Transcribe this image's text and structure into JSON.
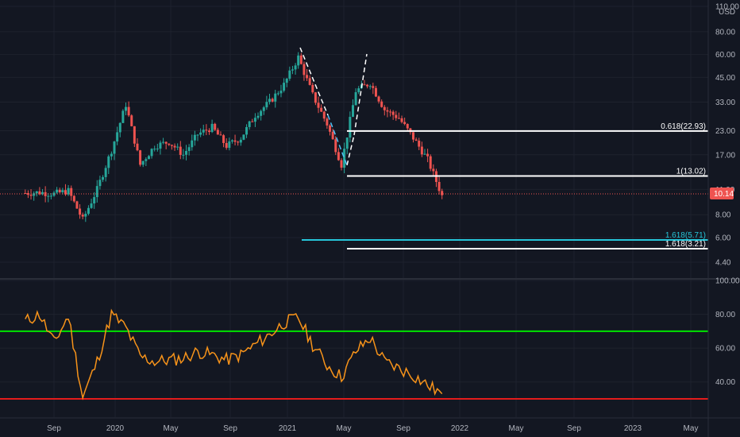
{
  "price_axis": {
    "currency": "USD",
    "ticks": [
      "110.00",
      "80.00",
      "60.00",
      "45.00",
      "33.00",
      "23.00",
      "17.00",
      "11.00",
      "8.00",
      "6.00",
      "4.40"
    ],
    "tick_values": [
      110,
      80,
      60,
      45,
      33,
      23,
      17,
      11,
      8,
      6,
      4.4
    ],
    "log_scale": true,
    "current_price": "10.14",
    "current_price_value": 10.14
  },
  "rsi_axis": {
    "ticks": [
      "100.00",
      "80.00",
      "60.00",
      "40.00"
    ],
    "tick_values": [
      100,
      80,
      60,
      40
    ],
    "overbought": 70,
    "oversold": 30
  },
  "time_axis": {
    "labels": [
      "Sep",
      "2020",
      "May",
      "Sep",
      "2021",
      "May",
      "Sep",
      "2022",
      "May",
      "Sep",
      "2023",
      "May"
    ]
  },
  "fib_levels": [
    {
      "label": "0.618(22.93)",
      "value": 22.93,
      "color": "#ffffff"
    },
    {
      "label": "1(13.02)",
      "value": 13.02,
      "color": "#ffffff"
    },
    {
      "label": "1.618(5.71)",
      "value": 5.71,
      "color": "#26c6da"
    },
    {
      "label": "1.618(3.21)",
      "value": 3.21,
      "color": "#ffffff"
    }
  ],
  "colors": {
    "up": "#26a69a",
    "down": "#ef5350",
    "background": "#131722",
    "rsi_line": "#f7931a",
    "rsi_upper": "#00e400",
    "rsi_lower": "#e41c1c",
    "price_line": "#ef5350",
    "pattern": "#ffffff",
    "pattern_alt": "#4fc3f7"
  },
  "chart_data": [
    {
      "type": "candlestick",
      "title": "",
      "y_scale": "log",
      "ylim": [
        4.2,
        115
      ],
      "x": [
        "2019-07",
        "2019-08",
        "2019-09",
        "2019-10",
        "2019-11",
        "2019-12",
        "2020-01",
        "2020-02",
        "2020-03",
        "2020-04",
        "2020-05",
        "2020-06",
        "2020-07",
        "2020-08",
        "2020-09",
        "2020-10",
        "2020-11",
        "2020-12",
        "2021-01",
        "2021-02",
        "2021-03",
        "2021-04",
        "2021-05",
        "2021-06",
        "2021-07",
        "2021-08",
        "2021-09",
        "2021-10",
        "2021-11",
        "2021-12"
      ],
      "series": [
        {
          "values": [
            10.5,
            10.6,
            10.4,
            10.8,
            7.5,
            11.0,
            18.0,
            32.0,
            15.0,
            19.0,
            20.0,
            17.0,
            22.0,
            24.0,
            19.0,
            21.0,
            28.0,
            33.0,
            41.0,
            58.0,
            36.0,
            25.0,
            15.0,
            38.0,
            42.0,
            30.0,
            27.0,
            21.0,
            16.0,
            10.14
          ]
        }
      ],
      "annotations": [
        "0.618(22.93)",
        "1(13.02)",
        "1.618(5.71)",
        "1.618(3.21)"
      ]
    },
    {
      "type": "line",
      "title": "",
      "ylim": [
        25,
        100
      ],
      "x": [
        "2019-07",
        "2019-08",
        "2019-09",
        "2019-10",
        "2019-11",
        "2019-12",
        "2020-01",
        "2020-02",
        "2020-03",
        "2020-04",
        "2020-05",
        "2020-06",
        "2020-07",
        "2020-08",
        "2020-09",
        "2020-10",
        "2020-11",
        "2020-12",
        "2021-01",
        "2021-02",
        "2021-03",
        "2021-04",
        "2021-05",
        "2021-06",
        "2021-07",
        "2021-08",
        "2021-09",
        "2021-10",
        "2021-11",
        "2021-12"
      ],
      "series": [
        {
          "values": [
            76,
            80,
            63,
            79,
            31,
            52,
            80,
            72,
            55,
            52,
            53,
            54,
            58,
            56,
            53,
            56,
            62,
            68,
            75,
            78,
            62,
            50,
            43,
            58,
            66,
            52,
            48,
            44,
            38,
            33
          ]
        }
      ],
      "hlines": [
        70,
        30
      ]
    }
  ]
}
